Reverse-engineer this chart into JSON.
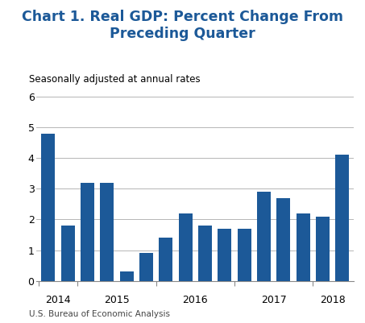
{
  "title": "Chart 1. Real GDP: Percent Change From\nPreceding Quarter",
  "subtitle": "Seasonally adjusted at annual rates",
  "footer": "U.S. Bureau of Economic Analysis",
  "bar_values": [
    4.8,
    1.8,
    3.2,
    3.2,
    0.3,
    0.9,
    1.4,
    2.2,
    1.8,
    1.7,
    1.7,
    2.9,
    2.7,
    2.2,
    2.1,
    4.1
  ],
  "n_bars": 16,
  "bar_color": "#1C5998",
  "title_color": "#1C5998",
  "yticks": [
    0,
    1,
    2,
    3,
    4,
    5,
    6
  ],
  "ylim": [
    0,
    6.3
  ],
  "grid_color": "#AAAAAA",
  "title_fontsize": 12.5,
  "subtitle_fontsize": 8.5,
  "footer_fontsize": 7.5,
  "year_labels": [
    "2014",
    "2015",
    "2016",
    "2017",
    "2018"
  ]
}
